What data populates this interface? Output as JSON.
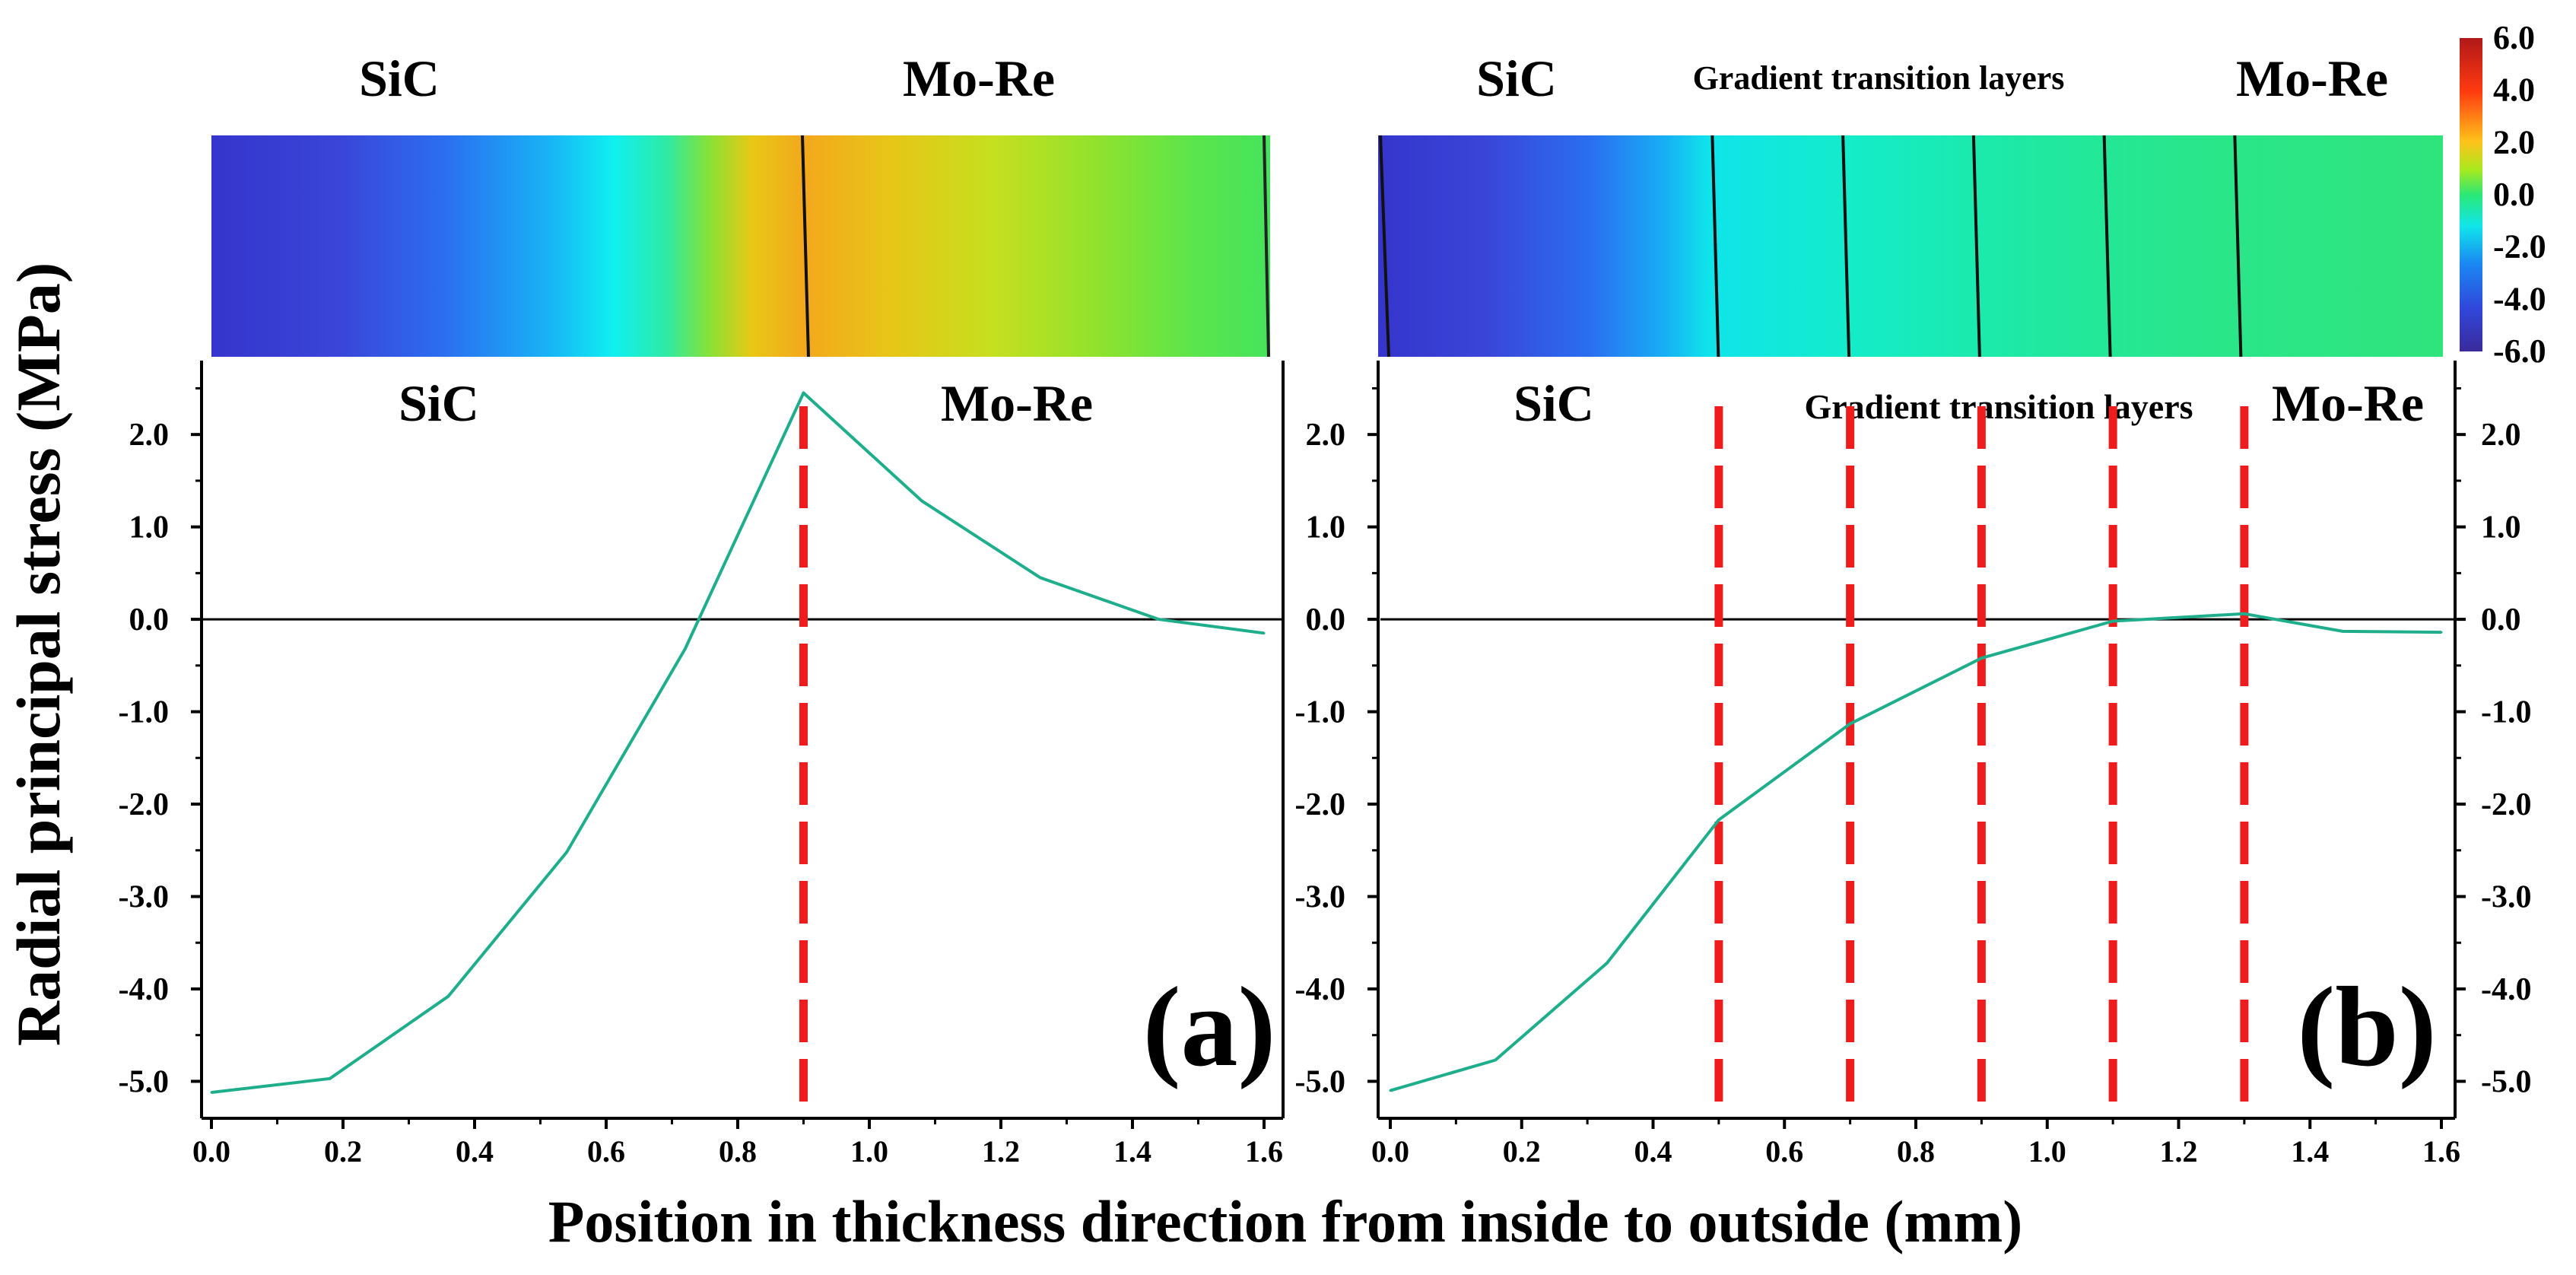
{
  "figure": {
    "ylabel": "Radial principal stress (MPa)",
    "xlabel": "Position in thickness direction from inside to outside (mm)"
  },
  "colors": {
    "series": "#1fae8c",
    "interface": "#ee1c1c",
    "zero_line": "#000000"
  },
  "colorbar": {
    "ticks": [
      "6.0",
      "4.0",
      "2.0",
      "0.0",
      "-2.0",
      "-4.0",
      "-6.0"
    ],
    "range": [
      -6.0,
      6.0
    ]
  },
  "chart_data": [
    {
      "type": "line",
      "panel_label": "(a)",
      "contour_labels": [
        "SiC",
        "Mo-Re"
      ],
      "plot_labels": [
        "SiC",
        "Mo-Re"
      ],
      "x": [
        0.0,
        0.18,
        0.36,
        0.54,
        0.72,
        0.9,
        1.08,
        1.26,
        1.44,
        1.6
      ],
      "y": [
        -5.12,
        -4.97,
        -4.08,
        -2.52,
        -0.32,
        2.45,
        1.28,
        0.45,
        0.0,
        -0.15
      ],
      "interfaces": [
        0.9
      ],
      "xlim": [
        0.0,
        1.6
      ],
      "ylim": [
        -5.4,
        2.8
      ],
      "xticks": [
        "0.0",
        "0.2",
        "0.4",
        "0.6",
        "0.8",
        "1.0",
        "1.2",
        "1.4",
        "1.6"
      ],
      "yticks": [
        "2.0",
        "1.0",
        "0.0",
        "-1.0",
        "-2.0",
        "-3.0",
        "-4.0",
        "-5.0"
      ]
    },
    {
      "type": "line",
      "panel_label": "(b)",
      "contour_labels": [
        "SiC",
        "Gradient transition layers",
        "Mo-Re"
      ],
      "plot_labels": [
        "SiC",
        "Gradient transition layers",
        "Mo-Re"
      ],
      "x": [
        0.0,
        0.16,
        0.33,
        0.5,
        0.7,
        0.9,
        1.1,
        1.3,
        1.45,
        1.6
      ],
      "y": [
        -5.1,
        -4.77,
        -3.72,
        -2.17,
        -1.13,
        -0.42,
        -0.02,
        0.06,
        -0.13,
        -0.14
      ],
      "interfaces": [
        0.5,
        0.7,
        0.9,
        1.1,
        1.3
      ],
      "xlim": [
        0.0,
        1.6
      ],
      "ylim": [
        -5.4,
        2.8
      ],
      "xticks": [
        "0.0",
        "0.2",
        "0.4",
        "0.6",
        "0.8",
        "1.0",
        "1.2",
        "1.4",
        "1.6"
      ],
      "yticks": [
        "2.0",
        "1.0",
        "0.0",
        "-1.0",
        "-2.0",
        "-3.0",
        "-4.0",
        "-5.0"
      ]
    }
  ]
}
